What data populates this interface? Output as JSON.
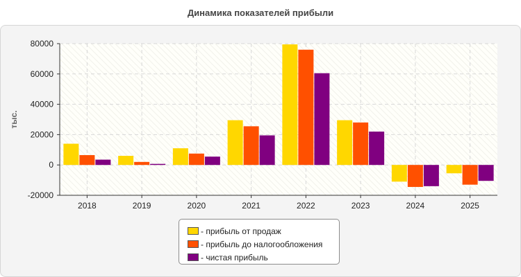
{
  "chart_data": {
    "type": "bar",
    "title": "Динамика показателей прибыли",
    "ylabel": "тыс.",
    "xlabel": "",
    "ylim": [
      -20000,
      80000
    ],
    "yticks": [
      80000,
      60000,
      40000,
      20000,
      0,
      -20000
    ],
    "categories": [
      "2018",
      "2019",
      "2020",
      "2021",
      "2022",
      "2023",
      "2024",
      "2025"
    ],
    "grid": true,
    "legend_position": "bottom",
    "series": [
      {
        "name": "- прибыль от продаж",
        "color": "#FFD700",
        "values": [
          14000,
          6000,
          11000,
          29500,
          79500,
          29500,
          -11000,
          -5500
        ]
      },
      {
        "name": "- прибыль до налогообложения",
        "color": "#FF5000",
        "values": [
          6500,
          2000,
          7500,
          25500,
          76000,
          28000,
          -14500,
          -13000
        ]
      },
      {
        "name": "- чистая прибыль",
        "color": "#800080",
        "values": [
          3500,
          700,
          5500,
          19500,
          60500,
          22000,
          -14000,
          -10500
        ]
      }
    ]
  }
}
